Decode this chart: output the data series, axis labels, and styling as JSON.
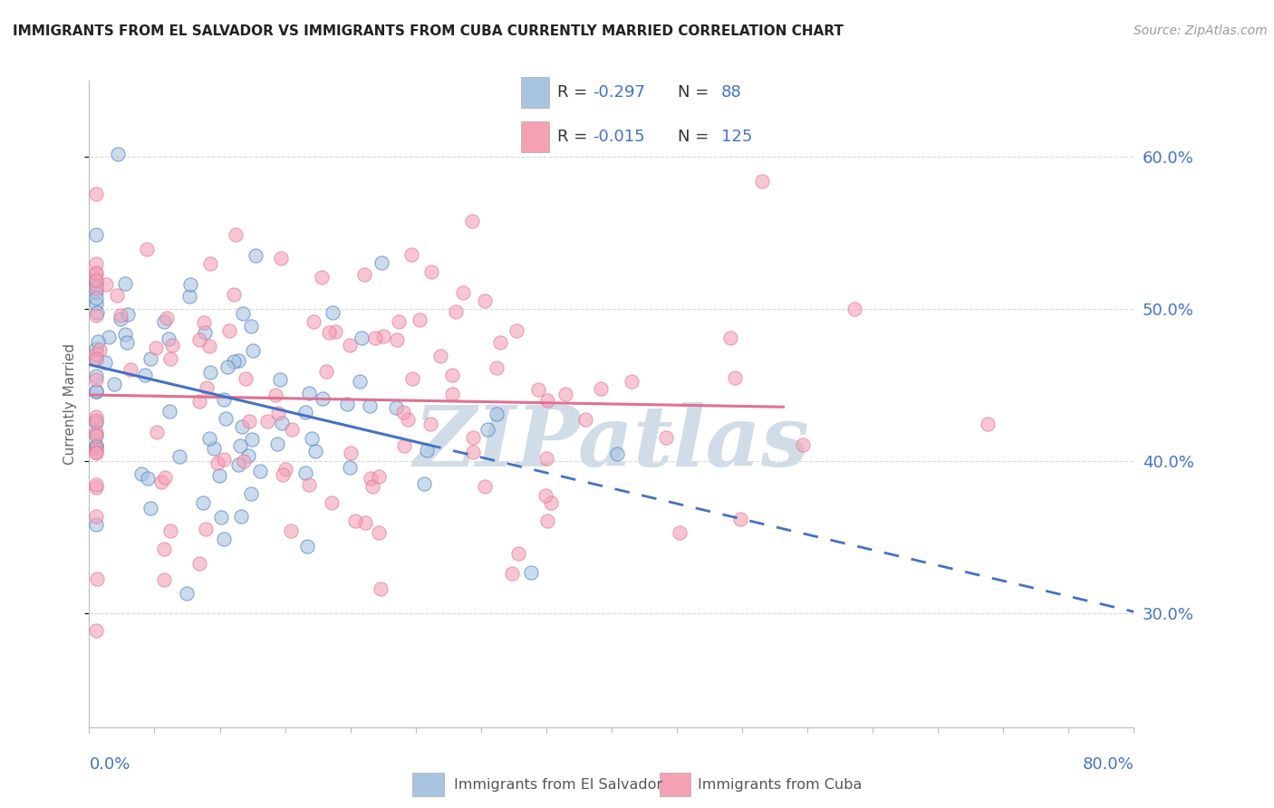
{
  "title": "IMMIGRANTS FROM EL SALVADOR VS IMMIGRANTS FROM CUBA CURRENTLY MARRIED CORRELATION CHART",
  "source": "Source: ZipAtlas.com",
  "ylabel": "Currently Married",
  "ytick_labels": [
    "30.0%",
    "40.0%",
    "50.0%",
    "60.0%"
  ],
  "ytick_values": [
    0.3,
    0.4,
    0.5,
    0.6
  ],
  "xlim": [
    0.0,
    0.8
  ],
  "ylim": [
    0.225,
    0.65
  ],
  "color_blue": "#a8c4e0",
  "color_pink": "#f4a0b5",
  "color_line_blue": "#4472c4",
  "color_line_pink": "#e07090",
  "color_text_blue": "#4472c4",
  "watermark_color": "#d0dde8",
  "background": "#ffffff",
  "grid_color": "#d8d8d8",
  "title_fontsize": 11,
  "source_fontsize": 10,
  "tick_fontsize": 13,
  "ylabel_fontsize": 11
}
